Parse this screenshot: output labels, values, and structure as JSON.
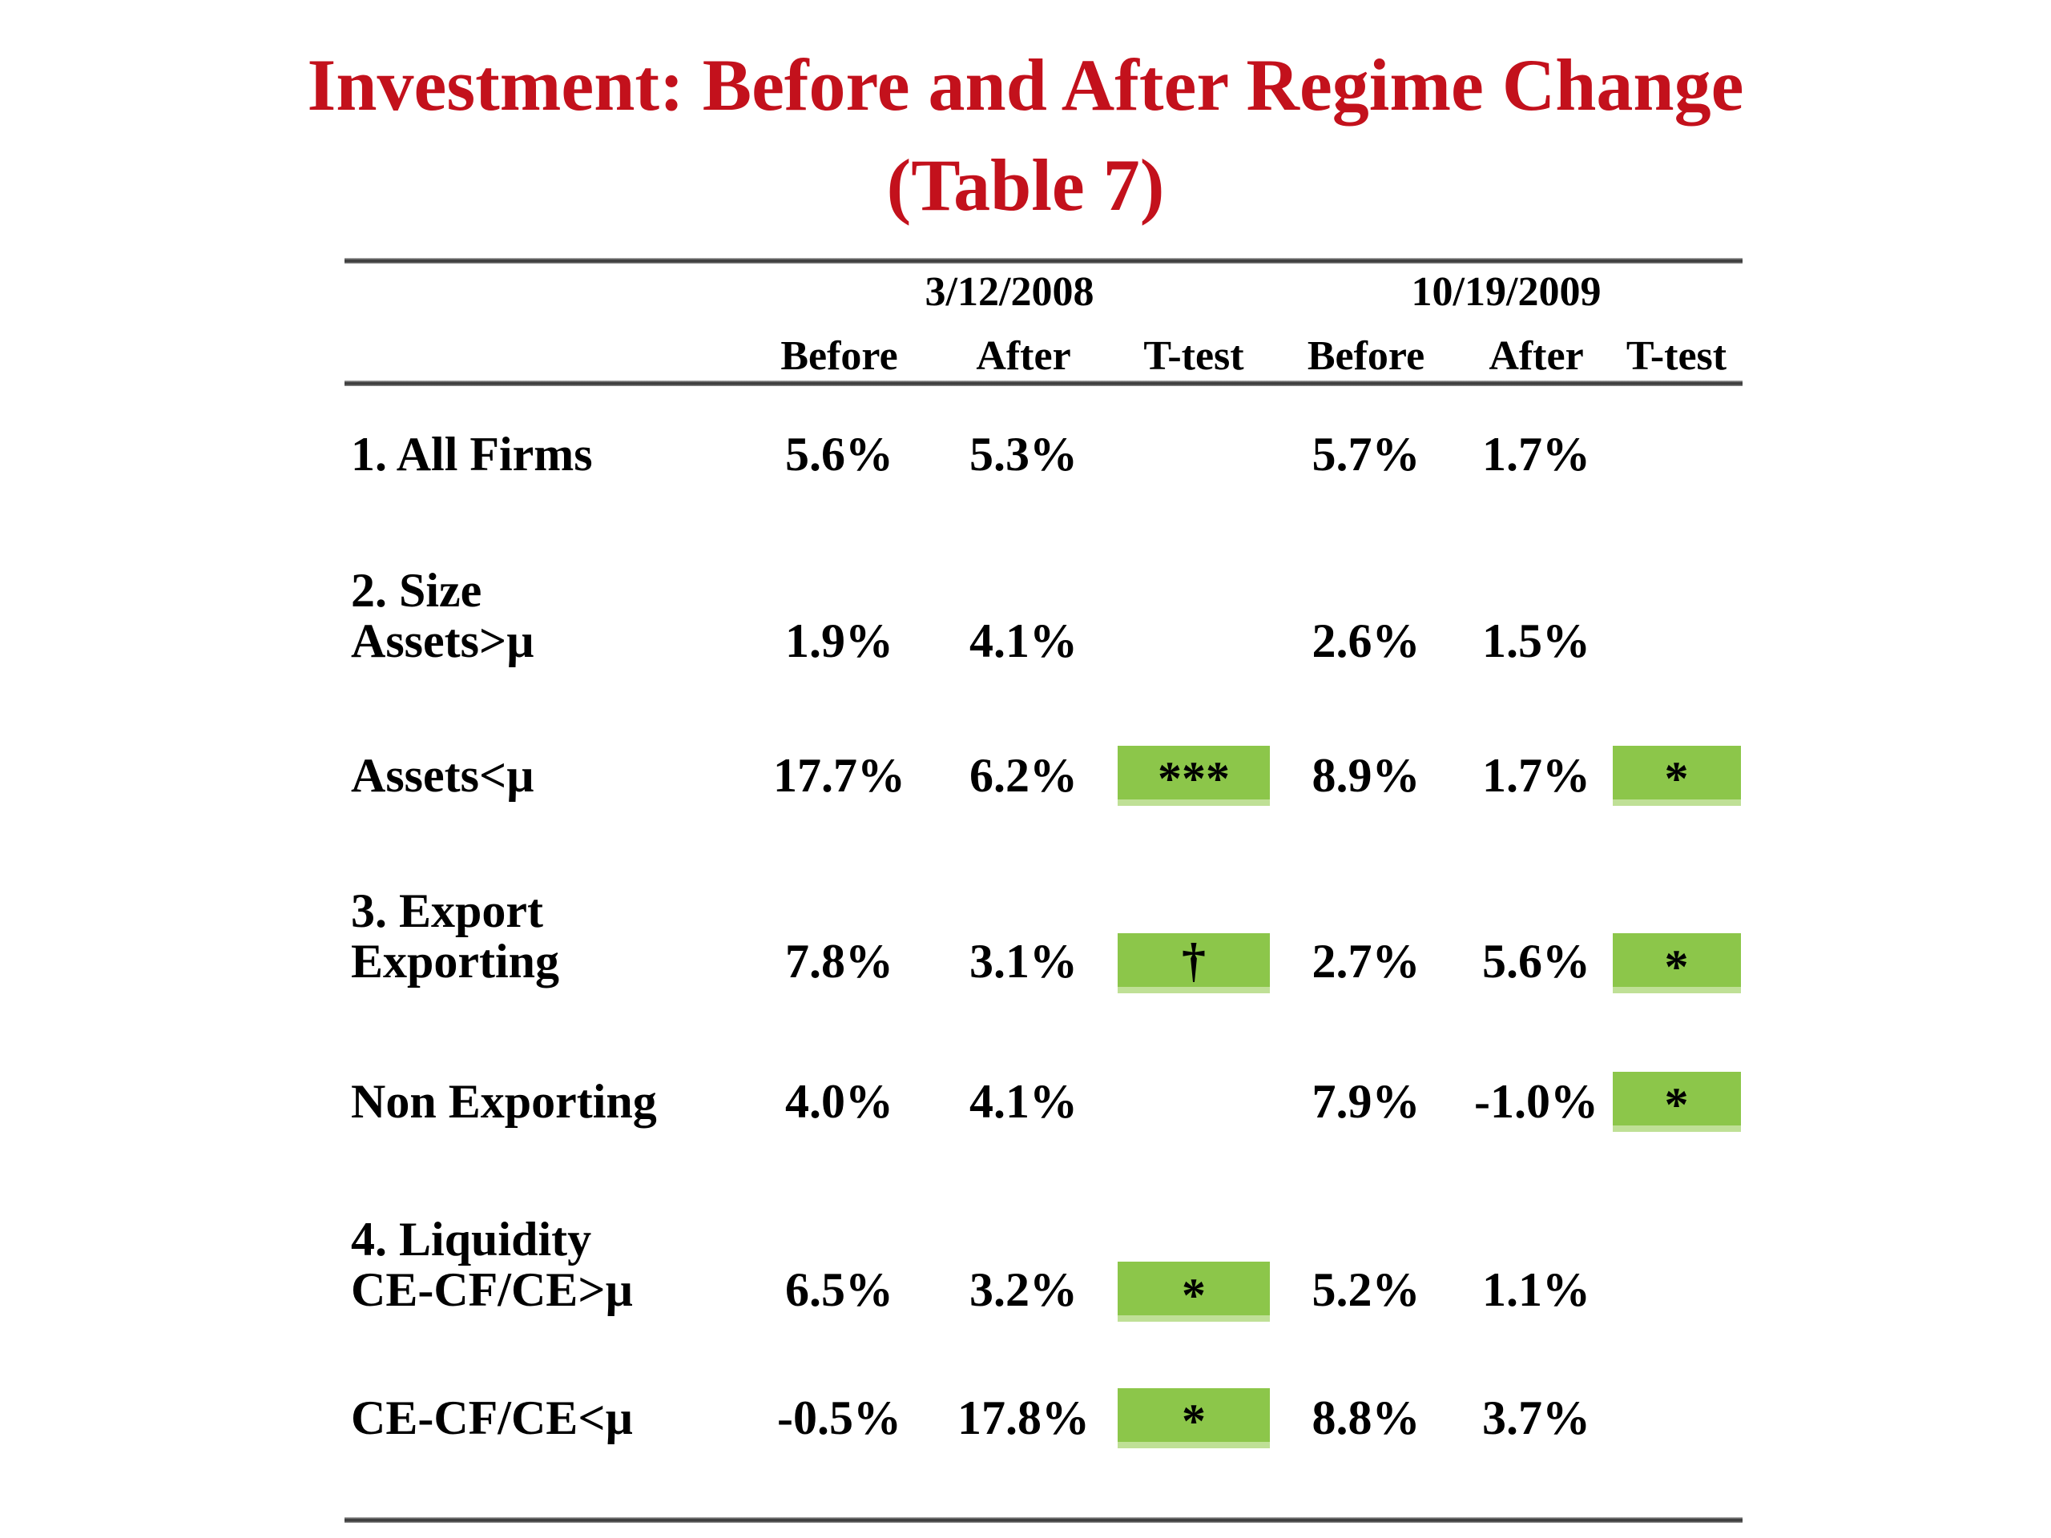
{
  "slide": {
    "title_line1": "Investment: Before and After Regime Change",
    "title_line2": "(Table 7)"
  },
  "colors": {
    "title_red": "#c3111c",
    "highlight_green": "#8cc64a",
    "text_black": "#000000"
  },
  "table": {
    "group_headers": [
      "3/12/2008",
      "10/19/2009"
    ],
    "column_headers": [
      "Before",
      "After",
      "T-test",
      "Before",
      "After",
      "T-test"
    ],
    "rows": [
      {
        "section": "",
        "label": "1. All Firms",
        "cells": [
          "5.6%",
          "5.3%",
          "",
          "5.7%",
          "1.7%",
          ""
        ]
      },
      {
        "section": "2. Size",
        "label": "Assets>µ",
        "cells": [
          "1.9%",
          "4.1%",
          "",
          "2.6%",
          "1.5%",
          ""
        ]
      },
      {
        "section": "",
        "label": "Assets<µ",
        "cells": [
          "17.7%",
          "6.2%",
          "***",
          "8.9%",
          "1.7%",
          "*"
        ]
      },
      {
        "section": "3. Export",
        "label": "Exporting",
        "cells": [
          "7.8%",
          "3.1%",
          "†",
          "2.7%",
          "5.6%",
          "*"
        ]
      },
      {
        "section": "",
        "label": "Non Exporting",
        "cells": [
          "4.0%",
          "4.1%",
          "",
          "7.9%",
          "-1.0%",
          "*"
        ]
      },
      {
        "section": "4. Liquidity",
        "label": "CE-CF/CE>µ",
        "cells": [
          "6.5%",
          "3.2%",
          "*",
          "5.2%",
          "1.1%",
          ""
        ]
      },
      {
        "section": "",
        "label": "CE-CF/CE<µ",
        "cells": [
          "-0.5%",
          "17.8%",
          "*",
          "8.8%",
          "3.7%",
          ""
        ]
      }
    ]
  }
}
